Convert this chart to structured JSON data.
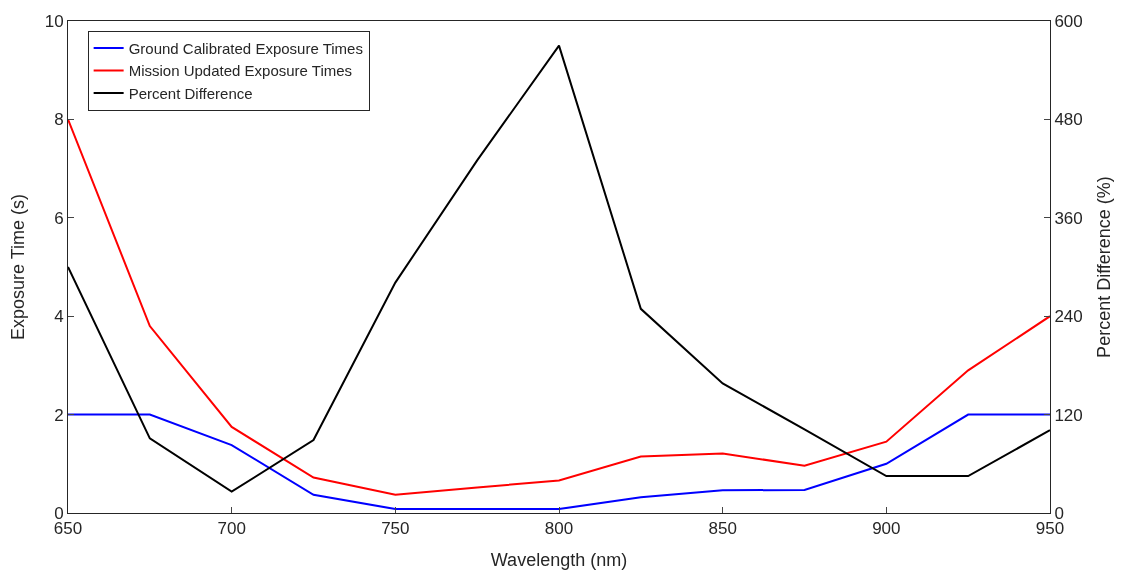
{
  "chart_data": {
    "type": "line",
    "xlabel": "Wavelength (nm)",
    "ylabel": "Exposure Time (s)",
    "y2label": "Percent Difference (%)",
    "x": [
      650,
      675,
      700,
      725,
      750,
      775,
      800,
      825,
      850,
      875,
      900,
      925,
      950
    ],
    "series": [
      {
        "name": "Ground Calibrated Exposure Times",
        "color": "#0000ff",
        "values": [
          2,
          2,
          1.38,
          0.37,
          0.08,
          0.08,
          0.08,
          0.32,
          0.46,
          0.47,
          1.0,
          2,
          2
        ]
      },
      {
        "name": "Mission Updated Exposure Times",
        "color": "#ff0000",
        "values": [
          8,
          3.8,
          1.75,
          0.72,
          0.37,
          0.52,
          0.66,
          1.15,
          1.21,
          0.96,
          1.45,
          2.9,
          4.0
        ]
      },
      {
        "name": "Percent Difference",
        "color": "#000000",
        "axis": "y2",
        "values": [
          300,
          91,
          26,
          89,
          281,
          430,
          570,
          249,
          158,
          102,
          45,
          45,
          101
        ]
      }
    ],
    "xlim": [
      650,
      950
    ],
    "xticks": [
      650,
      700,
      750,
      800,
      850,
      900,
      950
    ],
    "ylim": [
      0,
      10
    ],
    "yticks": [
      0,
      2,
      4,
      6,
      8,
      10
    ],
    "y2lim": [
      0,
      600
    ],
    "y2ticks": [
      0,
      120,
      240,
      360,
      480,
      600
    ],
    "legend": "top left",
    "marker": "none",
    "line_style": "solid"
  }
}
